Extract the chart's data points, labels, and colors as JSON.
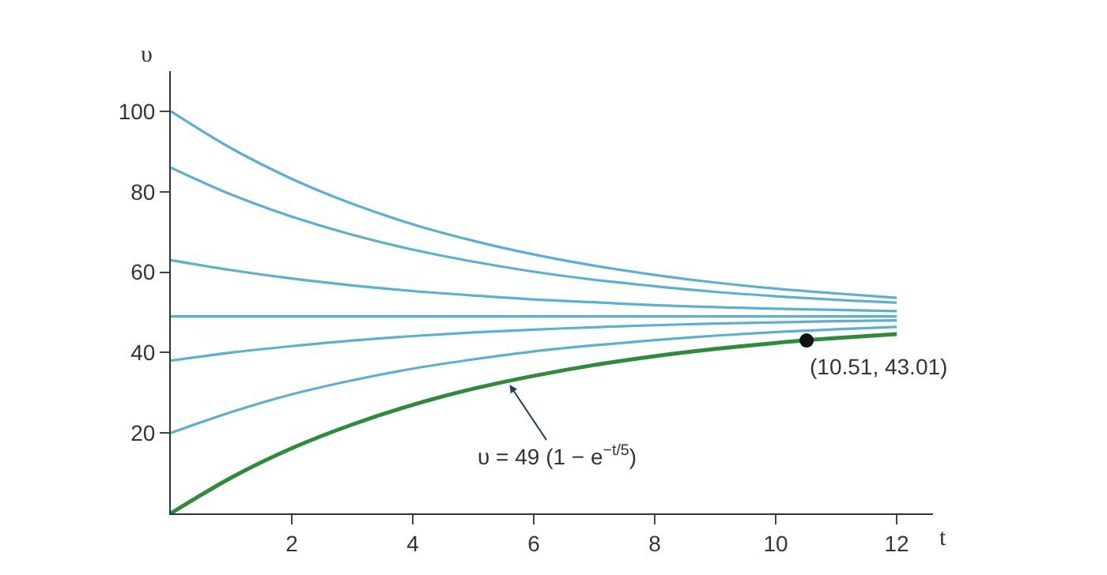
{
  "chart_data": {
    "type": "line",
    "xlabel": "t",
    "ylabel": "υ",
    "x": [
      0,
      1,
      2,
      3,
      4,
      5,
      6,
      7,
      8,
      9,
      10,
      11,
      12
    ],
    "series": [
      {
        "color": "#5ab0d2",
        "values": [
          100,
          90.8,
          83.2,
          77.0,
          71.9,
          67.8,
          64.4,
          61.6,
          59.3,
          57.4,
          55.9,
          54.7,
          53.6
        ]
      },
      {
        "color": "#5ab0d2",
        "values": [
          86,
          79.3,
          73.8,
          69.3,
          65.6,
          62.6,
          60.1,
          58.1,
          56.5,
          55.1,
          54.0,
          53.1,
          52.4
        ]
      },
      {
        "color": "#5ab0d2",
        "values": [
          63,
          60.5,
          58.4,
          56.7,
          55.3,
          54.2,
          53.2,
          52.5,
          51.8,
          51.3,
          50.9,
          50.6,
          50.3
        ]
      },
      {
        "color": "#5ab0d2",
        "values": [
          49,
          49,
          49,
          49,
          49,
          49,
          49,
          49,
          49,
          49,
          49,
          49,
          49
        ]
      },
      {
        "color": "#5ab0d2",
        "values": [
          38,
          40.0,
          41.6,
          43.0,
          44.1,
          45.0,
          45.7,
          46.3,
          46.8,
          47.2,
          47.5,
          47.8,
          48.0
        ]
      },
      {
        "color": "#5ab0d2",
        "values": [
          20,
          25.2,
          29.6,
          33.1,
          36.0,
          38.3,
          40.3,
          41.8,
          43.1,
          44.2,
          45.1,
          45.8,
          46.4
        ]
      },
      {
        "color": "#2e8b3a",
        "values": [
          0,
          8.9,
          16.2,
          22.1,
          27.0,
          31.0,
          34.2,
          36.9,
          39.1,
          40.9,
          42.4,
          43.6,
          44.6
        ]
      },
      {
        "type": "scatter",
        "color": "#111111",
        "x": [
          10.51
        ],
        "values": [
          43.01
        ]
      }
    ],
    "annotations": [
      {
        "text": "(10.51, 43.01)",
        "x": 10.51,
        "y": 43.01
      },
      {
        "text": "υ = 49 (1 − e$^{−t/5}$)",
        "x": 5.6,
        "y": 32
      }
    ],
    "xlim": [
      0,
      12.6
    ],
    "ylim": [
      0,
      110
    ],
    "xticks": [
      2,
      4,
      6,
      8,
      10,
      12
    ],
    "yticks": [
      20,
      40,
      60,
      80,
      100
    ]
  }
}
